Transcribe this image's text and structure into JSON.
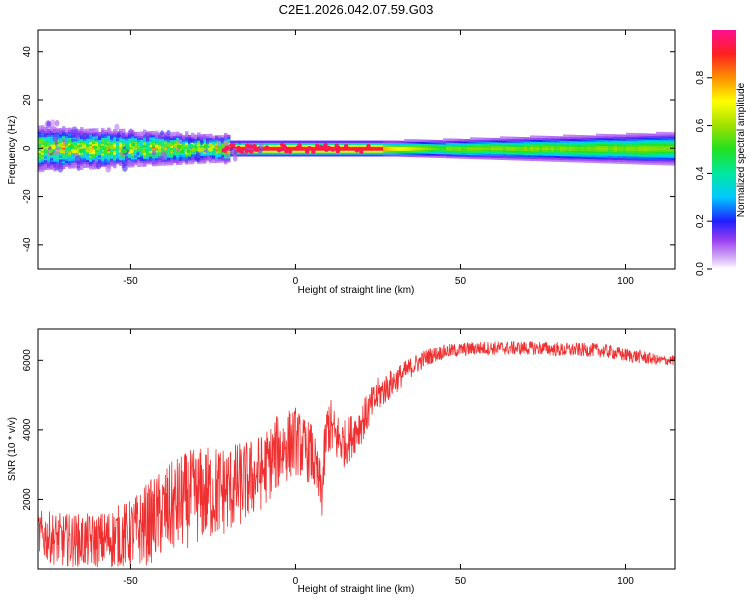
{
  "title": "C2E1.2026.042.07.59.G03",
  "colors": {
    "snr_line": "#f03030",
    "axis": "#000000",
    "background": "#ffffff"
  },
  "chart_data": [
    {
      "type": "heatmap",
      "title": "C2E1.2026.042.07.59.G03",
      "xlabel": "Height of straight line (km)",
      "ylabel": "Frequency (Hz)",
      "xlim": [
        -78,
        115
      ],
      "ylim": [
        -50,
        49
      ],
      "xticks": [
        -50,
        0,
        50,
        100
      ],
      "xtick_labels": [
        "-50",
        "0",
        "50",
        "100"
      ],
      "yticks": [
        -40,
        -20,
        0,
        20,
        40
      ],
      "ytick_labels": [
        "-40",
        "-20",
        "0",
        "20",
        "40"
      ],
      "colorbar": {
        "label": "Normalized spectral amplitude",
        "range": [
          0,
          1
        ],
        "ticks": [
          0.0,
          0.2,
          0.4,
          0.6,
          0.8
        ],
        "tick_labels": [
          "0.0",
          "0.2",
          "0.4",
          "0.6",
          "0.8"
        ]
      },
      "description_values": {
        "ridge_frequency_hz": 0,
        "band_halfwidth_hz_near_minus75km": 6,
        "band_halfwidth_hz_near_0km": 2,
        "band_halfwidth_hz_near_110km": 4,
        "peak_amplitude_region_km": [
          -22,
          25
        ]
      }
    },
    {
      "type": "line",
      "xlabel": "Height of straight line (km)",
      "ylabel": "SNR (10 * v/v)",
      "xlim": [
        -78,
        115
      ],
      "ylim": [
        0,
        6900
      ],
      "xticks": [
        -50,
        0,
        50,
        100
      ],
      "xtick_labels": [
        "-50",
        "0",
        "50",
        "100"
      ],
      "yticks": [
        2000,
        4000,
        6000
      ],
      "ytick_labels": [
        "2000",
        "4000",
        "6000"
      ],
      "series": [
        {
          "name": "SNR",
          "x": [
            -78,
            -70,
            -60,
            -50,
            -45,
            -40,
            -35,
            -30,
            -25,
            -20,
            -15,
            -10,
            -5,
            0,
            2,
            5,
            7,
            8,
            9,
            10,
            12,
            15,
            20,
            25,
            30,
            35,
            40,
            45,
            50,
            55,
            60,
            65,
            70,
            75,
            80,
            85,
            90,
            95,
            100,
            105,
            110,
            115
          ],
          "values": [
            1000,
            800,
            800,
            1000,
            1300,
            1600,
            1900,
            2100,
            2200,
            2300,
            2500,
            2800,
            3400,
            3700,
            3500,
            3300,
            2500,
            2200,
            3500,
            4200,
            3800,
            3600,
            4200,
            5000,
            5400,
            5800,
            6100,
            6250,
            6300,
            6350,
            6350,
            6350,
            6350,
            6350,
            6300,
            6300,
            6300,
            6250,
            6150,
            6100,
            6000,
            6000
          ],
          "noise_amplitude": [
            700,
            800,
            800,
            1000,
            1200,
            1300,
            1400,
            1400,
            1400,
            1300,
            1200,
            1100,
            1100,
            1000,
            900,
            900,
            800,
            800,
            900,
            900,
            800,
            700,
            600,
            500,
            400,
            300,
            250,
            200,
            200,
            200,
            200,
            200,
            200,
            200,
            200,
            200,
            200,
            200,
            200,
            200,
            150,
            150
          ]
        }
      ]
    }
  ]
}
